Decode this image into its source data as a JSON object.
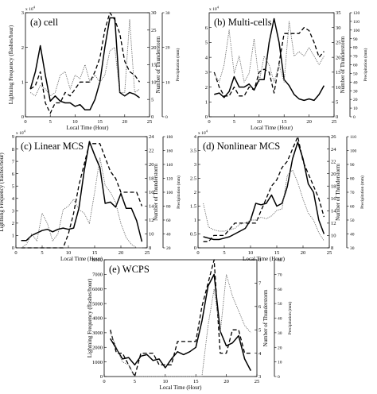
{
  "figure": {
    "panels": [
      {
        "title": "(a) cell",
        "y_multiplier": "x 10",
        "y_multiplier_exp": "4",
        "ylabel_left": "Lightning Frequency (flashes/hour)",
        "ylabel_right1": "Number of Thunderstorm",
        "ylabel_right2": "Precipitation (mm)",
        "xlabel": "Local Time (Hour)",
        "xlim": [
          0,
          25
        ],
        "xticks": [
          0,
          5,
          10,
          15,
          20,
          25
        ],
        "yleft": {
          "lim": [
            0,
            3
          ],
          "ticks": [
            0,
            1,
            2,
            3
          ]
        },
        "yright1": {
          "lim": [
            0,
            30
          ],
          "ticks": [
            0,
            5,
            10,
            15,
            20,
            25,
            30
          ]
        },
        "yright2": {
          "lim": [
            0,
            30
          ],
          "ticks": [
            0,
            10,
            20,
            30
          ]
        },
        "chart_data": {
          "type": "line",
          "x": [
            1,
            2,
            3,
            4,
            5,
            6,
            7,
            8,
            9,
            10,
            11,
            12,
            13,
            14,
            15,
            16,
            17,
            18,
            19,
            20,
            21,
            22,
            23
          ],
          "series": [
            {
              "axis": "left",
              "style": "solid",
              "values": [
                0.8,
                1.3,
                2.05,
                1.2,
                0.45,
                0.6,
                0.45,
                0.4,
                0.4,
                0.3,
                0.35,
                0.2,
                0.2,
                0.5,
                1.0,
                2.0,
                2.85,
                2.85,
                0.7,
                0.6,
                0.7,
                0.65,
                0.55
              ]
            },
            {
              "axis": "right1",
              "style": "dashed",
              "values": [
                8,
                9,
                13,
                4,
                1,
                4,
                4,
                7,
                6,
                8,
                10,
                10,
                10,
                13,
                17,
                25,
                30,
                28,
                24,
                16,
                13,
                12,
                10
              ]
            },
            {
              "axis": "right2",
              "style": "dotted",
              "values": [
                7,
                6,
                9,
                8,
                6,
                7,
                12,
                13,
                8,
                12,
                11,
                15,
                10,
                12,
                10,
                12,
                19,
                20,
                7,
                7,
                28,
                7,
                8
              ]
            }
          ]
        }
      },
      {
        "title": "(b) Multi-cells",
        "y_multiplier": "x 10",
        "y_multiplier_exp": "4",
        "ylabel_left": "",
        "ylabel_right1": "Number of Thunderstorm",
        "ylabel_right2": "Precipitation (mm)",
        "xlabel": "Local Time (Hour)",
        "xlim": [
          0,
          25
        ],
        "xticks": [
          0,
          5,
          10,
          15,
          20,
          25
        ],
        "yleft": {
          "lim": [
            0,
            7
          ],
          "ticks": [
            0,
            1,
            2,
            3,
            4,
            5,
            6
          ]
        },
        "yright1": {
          "lim": [
            0,
            35
          ],
          "ticks": [
            0,
            5,
            10,
            15,
            20,
            25,
            30,
            35
          ]
        },
        "yright2": {
          "lim": [
            0,
            120
          ],
          "ticks": [
            0,
            10,
            20,
            30,
            40,
            50,
            60,
            70,
            80,
            90,
            100,
            110,
            120
          ]
        },
        "chart_data": {
          "type": "line",
          "x": [
            1,
            2,
            3,
            4,
            5,
            6,
            7,
            8,
            9,
            10,
            11,
            12,
            13,
            14,
            15,
            16,
            17,
            18,
            19,
            20,
            21,
            22,
            23
          ],
          "series": [
            {
              "axis": "left",
              "style": "solid",
              "values": [
                1.5,
                1.6,
                1.3,
                1.7,
                2.7,
                2.0,
                2.0,
                2.2,
                1.8,
                2.5,
                2.5,
                5.0,
                6.6,
                5.0,
                2.5,
                2.1,
                1.5,
                1.2,
                1.1,
                1.2,
                1.1,
                1.5,
                2.1
              ]
            },
            {
              "axis": "right1",
              "style": "dashed",
              "values": [
                15,
                10,
                7,
                7,
                10,
                7,
                7,
                10,
                9,
                15,
                16,
                15,
                8,
                18,
                28,
                28,
                28,
                28,
                30,
                29,
                25,
                20,
                22
              ]
            },
            {
              "axis": "right2",
              "style": "dotted",
              "values": [
                50,
                40,
                60,
                100,
                50,
                70,
                40,
                50,
                90,
                40,
                70,
                60,
                40,
                60,
                40,
                110,
                70,
                75,
                70,
                80,
                70,
                60,
                70
              ]
            }
          ]
        }
      },
      {
        "title": "(c) Linear MCS",
        "y_multiplier": "x 10",
        "y_multiplier_exp": "4",
        "ylabel_left": "Lightning Frequency (flashes/hour)",
        "ylabel_right1": "Number of Thunderstorm",
        "ylabel_right2": "Precipitation (mm)",
        "xlabel": "Local Time (Hour)",
        "xlim": [
          0,
          25
        ],
        "xticks": [
          0,
          5,
          10,
          15,
          20,
          25
        ],
        "yleft": {
          "lim": [
            0,
            9
          ],
          "ticks": [
            0,
            1,
            2,
            3,
            4,
            5,
            6,
            7,
            8,
            9
          ]
        },
        "yright1": {
          "lim": [
            8,
            24
          ],
          "ticks": [
            8,
            10,
            12,
            14,
            16,
            18,
            20,
            22,
            24
          ]
        },
        "yright2": {
          "lim": [
            20,
            180
          ],
          "ticks": [
            20,
            40,
            60,
            80,
            100,
            120,
            140,
            160,
            180
          ]
        },
        "chart_data": {
          "type": "line",
          "x": [
            1,
            2,
            3,
            4,
            5,
            6,
            7,
            8,
            9,
            10,
            11,
            12,
            13,
            14,
            15,
            16,
            17,
            18,
            19,
            20,
            21,
            22,
            23,
            24
          ],
          "series": [
            {
              "axis": "left",
              "style": "solid",
              "values": [
                0.6,
                0.6,
                1.0,
                1.2,
                1.4,
                1.5,
                1.3,
                1.5,
                1.6,
                1.5,
                1.6,
                3.2,
                6.2,
                8.6,
                7.5,
                6.5,
                3.6,
                3.7,
                3.3,
                4.4,
                3.2,
                3.2,
                2.2,
                0.5
              ]
            },
            {
              "axis": "right1",
              "style": "dashed",
              "values": [
                8,
                8,
                8,
                8,
                8,
                8,
                8,
                8,
                8,
                10,
                13,
                17,
                20,
                23,
                23,
                23,
                21,
                19,
                18,
                16,
                16,
                16,
                16,
                14
              ]
            },
            {
              "axis": "right2",
              "style": "dotted",
              "values": [
                20,
                25,
                40,
                30,
                70,
                55,
                30,
                40,
                75,
                80,
                90,
                75,
                70,
                55,
                100,
                150,
                110,
                100,
                85,
                55,
                35,
                25,
                20,
                20
              ]
            }
          ]
        }
      },
      {
        "title": "(d) Nonlinear MCS",
        "y_multiplier": "x 10",
        "y_multiplier_exp": "4",
        "ylabel_left": "",
        "ylabel_right1": "Number of Thunderstorm",
        "ylabel_right2": "Precipitation (mm)",
        "xlabel": "Local Time (Hour)",
        "xlim": [
          0,
          25
        ],
        "xticks": [
          0,
          5,
          10,
          15,
          20,
          25
        ],
        "yleft": {
          "lim": [
            0,
            4
          ],
          "ticks": [
            0,
            0.5,
            1,
            1.5,
            2,
            2.5,
            3,
            3.5,
            4
          ]
        },
        "yright1": {
          "lim": [
            8,
            26
          ],
          "ticks": [
            8,
            10,
            12,
            14,
            16,
            18,
            20,
            22,
            24,
            26
          ]
        },
        "yright2": {
          "lim": [
            30,
            110
          ],
          "ticks": [
            30,
            40,
            50,
            60,
            70,
            80,
            90,
            100,
            110
          ]
        },
        "chart_data": {
          "type": "line",
          "x": [
            1,
            2,
            3,
            4,
            5,
            6,
            7,
            8,
            9,
            10,
            11,
            12,
            13,
            14,
            15,
            16,
            17,
            18,
            19,
            20,
            21,
            22,
            23,
            24
          ],
          "series": [
            {
              "axis": "left",
              "style": "solid",
              "values": [
                0.4,
                0.35,
                0.3,
                0.3,
                0.35,
                0.4,
                0.5,
                0.6,
                0.7,
                1.0,
                1.6,
                1.55,
                1.6,
                1.9,
                1.5,
                1.6,
                2.2,
                3.2,
                3.8,
                3.2,
                2.3,
                2.0,
                1.0,
                0.5
              ]
            },
            {
              "axis": "right1",
              "style": "dashed",
              "values": [
                9,
                9,
                10,
                10,
                10,
                11,
                12,
                12,
                12,
                12,
                12,
                14,
                16,
                18,
                19,
                21,
                22,
                24,
                26,
                22,
                20,
                18,
                16,
                13
              ]
            },
            {
              "axis": "right2",
              "style": "dotted",
              "values": [
                62,
                45,
                43,
                42,
                42,
                43,
                44,
                47,
                48,
                50,
                50,
                52,
                51,
                53,
                57,
                58,
                82,
                86,
                77,
                65,
                55,
                50,
                41,
                35
              ]
            }
          ]
        }
      },
      {
        "title": "(e) WCPS",
        "y_multiplier": "",
        "y_multiplier_exp": "",
        "ylabel_left": "Lightning Frequency (flashes/hour)",
        "ylabel_right1": "Number of Thunderstorm",
        "ylabel_right2": "Precipitation (mm)",
        "xlabel": "Local Time (Hour)",
        "xlim": [
          0,
          25
        ],
        "xticks": [
          0,
          5,
          10,
          15,
          20,
          25
        ],
        "yleft": {
          "lim": [
            0,
            8000
          ],
          "ticks": [
            0,
            1000,
            2000,
            3000,
            4000,
            5000,
            6000,
            7000,
            8000
          ]
        },
        "yright1": {
          "lim": [
            3,
            8
          ],
          "ticks": [
            3,
            4,
            5,
            6,
            7,
            8
          ]
        },
        "yright2": {
          "lim": [
            0,
            80
          ],
          "ticks": [
            0,
            10,
            20,
            30,
            40,
            50,
            60,
            70,
            80
          ]
        },
        "chart_data": {
          "type": "line",
          "x": [
            1,
            2,
            3,
            4,
            5,
            6,
            7,
            8,
            9,
            10,
            11,
            12,
            13,
            14,
            15,
            16,
            17,
            18,
            19,
            20,
            21,
            22,
            23,
            24
          ],
          "series": [
            {
              "axis": "left",
              "style": "solid",
              "values": [
                2600,
                1900,
                1200,
                1300,
                800,
                1400,
                1500,
                1100,
                1200,
                600,
                1200,
                1700,
                1500,
                1700,
                2000,
                3800,
                6200,
                7000,
                3100,
                2100,
                2300,
                2800,
                1200,
                400
              ]
            },
            {
              "axis": "right1",
              "style": "dashed",
              "values": [
                5,
                4,
                4,
                3.5,
                3,
                4,
                4,
                4,
                3.5,
                3.5,
                3.5,
                4.5,
                4.5,
                4.5,
                4.5,
                6,
                7,
                8,
                4,
                4,
                5,
                5,
                4,
                4
              ]
            },
            {
              "axis": "right2",
              "style": "dotted",
              "values": [
                30,
                20,
                10,
                8,
                0,
                0,
                0,
                0,
                0,
                0,
                0,
                0,
                0,
                0,
                0,
                0,
                35,
                60,
                30,
                70,
                55,
                45,
                35,
                30
              ]
            }
          ]
        }
      }
    ]
  }
}
